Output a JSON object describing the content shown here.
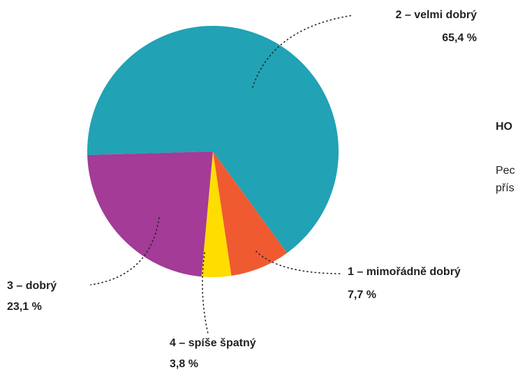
{
  "chart_data": {
    "type": "pie",
    "categories": [
      "2 – velmi dobrý",
      "1 – mimořádně dobrý",
      "4 – spíše špatný",
      "3 – dobrý"
    ],
    "values": [
      65.4,
      7.7,
      3.8,
      23.1
    ],
    "value_labels": [
      "65,4 %",
      "7,7 %",
      "3,8 %",
      "23,1 %"
    ],
    "colors": [
      "#21a2b5",
      "#f05a30",
      "#ffdd00",
      "#a33b97"
    ]
  },
  "side_text": {
    "heading": "HO",
    "lines": [
      "Pec",
      "přís"
    ]
  }
}
